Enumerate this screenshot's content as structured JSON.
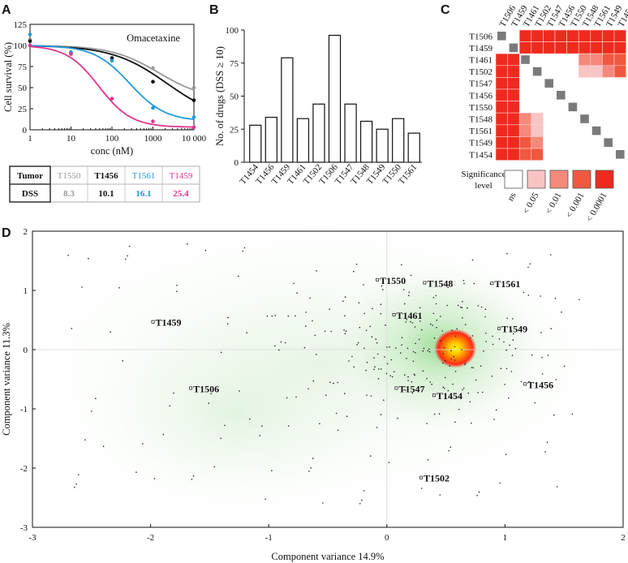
{
  "panels": {
    "a": "A",
    "b": "B",
    "c": "C",
    "d": "D"
  },
  "colors": {
    "gray": "#999999",
    "black": "#111111",
    "blue": "#1f9ad6",
    "magenta": "#e0338f",
    "heat_high": "#ff2a1a"
  },
  "chart_data": [
    {
      "id": "A",
      "type": "line",
      "title": "Omacetaxine",
      "xlabel": "conc (nM)",
      "ylabel": "Cell survival (%)",
      "xscale": "log",
      "xlim": [
        1,
        10000
      ],
      "ylim": [
        0,
        125
      ],
      "xticks": [
        1,
        10,
        100,
        1000,
        10000
      ],
      "xtick_labels": [
        "1",
        "10",
        "100",
        "1000",
        "10 000"
      ],
      "yticks": [
        0,
        25,
        50,
        75,
        100,
        125
      ],
      "series": [
        {
          "name": "T1550",
          "color": "gray",
          "x": [
            1,
            10,
            100,
            1000,
            10000
          ],
          "y": [
            107,
            92,
            85,
            73,
            50
          ],
          "fit": {
            "top": 100,
            "bottom": 35,
            "ic50": 1400,
            "hill": 0.75
          }
        },
        {
          "name": "T1456",
          "color": "black",
          "x": [
            1,
            10,
            100,
            1000,
            10000
          ],
          "y": [
            105,
            90,
            85,
            57,
            35
          ],
          "fit": {
            "top": 100,
            "bottom": 10,
            "ic50": 2200,
            "hill": 0.65
          }
        },
        {
          "name": "T1561",
          "color": "blue",
          "x": [
            1,
            10,
            100,
            1000,
            10000
          ],
          "y": [
            113,
            92,
            82,
            26,
            15
          ],
          "fit": {
            "top": 100,
            "bottom": 10,
            "ic50": 270,
            "hill": 1.0
          }
        },
        {
          "name": "T1459",
          "color": "magenta",
          "x": [
            1,
            10,
            100,
            1000,
            10000
          ],
          "y": [
            100,
            90,
            37,
            10,
            3
          ],
          "fit": {
            "top": 100,
            "bottom": 3,
            "ic50": 48,
            "hill": 1.1
          }
        }
      ],
      "table": {
        "row_labels": [
          "Tumor",
          "DSS"
        ],
        "columns": [
          {
            "tumor": "T1550",
            "dss": "8.3",
            "color": "gray"
          },
          {
            "tumor": "T1456",
            "dss": "10.1",
            "color": "black"
          },
          {
            "tumor": "T1561",
            "dss": "16.1",
            "color": "blue"
          },
          {
            "tumor": "T1459",
            "dss": "25.4",
            "color": "magenta"
          }
        ]
      }
    },
    {
      "id": "B",
      "type": "bar",
      "xlabel": "",
      "ylabel": "No. of drugs (DSS ≥ 10)",
      "ylim": [
        0,
        100
      ],
      "yticks": [
        0,
        25,
        50,
        75,
        100
      ],
      "categories": [
        "T1454",
        "T1456",
        "T1459",
        "T1461",
        "T1502",
        "T1506",
        "T1547",
        "T1548",
        "T1549",
        "T1550",
        "T1561"
      ],
      "values": [
        28,
        34,
        79,
        33,
        44,
        96,
        44,
        31,
        25,
        33,
        22
      ]
    },
    {
      "id": "C",
      "type": "heatmap",
      "labels": [
        "T1506",
        "T1459",
        "T1461",
        "T1502",
        "T1547",
        "T1456",
        "T1550",
        "T1548",
        "T1561",
        "T1549",
        "T1454"
      ],
      "levels": [
        [
          -1,
          0,
          4,
          4,
          4,
          4,
          4,
          4,
          4,
          4,
          4
        ],
        [
          0,
          -1,
          4,
          4,
          4,
          4,
          4,
          4,
          4,
          4,
          4
        ],
        [
          4,
          4,
          -1,
          0,
          0,
          0,
          0,
          2,
          2,
          3,
          3
        ],
        [
          4,
          4,
          0,
          -1,
          0,
          0,
          0,
          1,
          1,
          2,
          3
        ],
        [
          4,
          4,
          0,
          0,
          -1,
          0,
          0,
          0,
          0,
          0,
          0
        ],
        [
          4,
          4,
          0,
          0,
          0,
          -1,
          0,
          0,
          0,
          0,
          0
        ],
        [
          4,
          4,
          0,
          0,
          0,
          0,
          -1,
          0,
          0,
          0,
          0
        ],
        [
          4,
          4,
          2,
          1,
          0,
          0,
          0,
          -1,
          0,
          0,
          0
        ],
        [
          4,
          4,
          2,
          1,
          0,
          0,
          0,
          0,
          -1,
          0,
          0
        ],
        [
          4,
          4,
          3,
          2,
          0,
          0,
          0,
          0,
          0,
          -1,
          0
        ],
        [
          4,
          4,
          3,
          3,
          0,
          0,
          0,
          0,
          0,
          0,
          -1
        ]
      ],
      "legend_title": [
        "Significance",
        "level"
      ],
      "legend_labels": [
        "ns",
        "< 0.05",
        "< 0.01",
        "< 0.001",
        "< 0.0001"
      ],
      "legend_colors": [
        "#ffffff",
        "#f9c4c4",
        "#f4897c",
        "#f0583f",
        "#ee2a1e"
      ],
      "diag_color": "#7a7a7a"
    },
    {
      "id": "D",
      "type": "scatter",
      "xlabel": "Component variance 14.9%",
      "ylabel": "Component variance 11.3%",
      "xlim": [
        -3,
        2
      ],
      "ylim": [
        -3,
        2
      ],
      "xticks": [
        -3,
        -2,
        -1,
        0,
        1,
        2
      ],
      "yticks": [
        -3,
        -2,
        -1,
        0,
        1,
        2
      ],
      "density_center": [
        0.58,
        0.02
      ],
      "labeled_points": [
        {
          "name": "T1550",
          "x": -0.08,
          "y": 1.18
        },
        {
          "name": "T1548",
          "x": 0.32,
          "y": 1.13
        },
        {
          "name": "T1561",
          "x": 0.89,
          "y": 1.12
        },
        {
          "name": "T1459",
          "x": -1.98,
          "y": 0.47
        },
        {
          "name": "T1461",
          "x": 0.06,
          "y": 0.59
        },
        {
          "name": "T1549",
          "x": 0.95,
          "y": 0.36
        },
        {
          "name": "T1506",
          "x": -1.66,
          "y": -0.65
        },
        {
          "name": "T1547",
          "x": 0.08,
          "y": -0.65
        },
        {
          "name": "T1456",
          "x": 1.17,
          "y": -0.58
        },
        {
          "name": "T1454",
          "x": 0.4,
          "y": -0.77
        },
        {
          "name": "T1502",
          "x": 0.29,
          "y": -2.16
        }
      ],
      "point_count": 320
    }
  ]
}
